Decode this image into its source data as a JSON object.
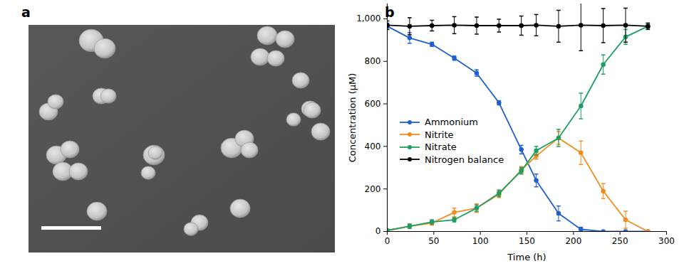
{
  "image_panel": {
    "label": "a"
  },
  "chart_data": {
    "type": "line",
    "label": "b",
    "x_label": "Time (h)",
    "y_label": "Concentration (μM)",
    "x": [
      0,
      24,
      48,
      72,
      96,
      120,
      144,
      160,
      184,
      208,
      232,
      256,
      280
    ],
    "xlim": [
      0,
      300
    ],
    "xticks": [
      0,
      50,
      100,
      150,
      200,
      250,
      300
    ],
    "ylim": [
      0,
      1070
    ],
    "yticks": [
      0,
      200,
      400,
      600,
      800,
      {
        "value": 1000,
        "label": "1,000"
      }
    ],
    "marker": "circle",
    "legend": "center left",
    "series": [
      {
        "name": "Ammonium",
        "color": "#1f5fd1",
        "values": [
          965,
          910,
          880,
          815,
          745,
          605,
          385,
          240,
          85,
          10,
          0,
          0,
          0
        ],
        "errors": [
          15,
          25,
          10,
          10,
          15,
          10,
          20,
          30,
          35,
          10,
          0,
          0,
          0
        ]
      },
      {
        "name": "Nitrite",
        "color": "#f28c1c",
        "values": [
          5,
          25,
          40,
          90,
          110,
          175,
          290,
          355,
          440,
          370,
          190,
          55,
          0
        ],
        "errors": [
          5,
          10,
          10,
          20,
          20,
          15,
          15,
          15,
          30,
          55,
          35,
          40,
          5
        ]
      },
      {
        "name": "Nitrate",
        "color": "#1e9e62",
        "values": [
          5,
          25,
          45,
          55,
          110,
          180,
          285,
          380,
          440,
          590,
          785,
          915,
          965
        ],
        "errors": [
          5,
          10,
          10,
          10,
          15,
          15,
          15,
          20,
          40,
          60,
          45,
          35,
          10
        ]
      },
      {
        "name": "Nitrogen balance",
        "color": "#000000",
        "values": [
          970,
          965,
          968,
          970,
          968,
          968,
          968,
          970,
          965,
          970,
          968,
          970,
          965
        ],
        "errors": [
          20,
          40,
          25,
          40,
          40,
          30,
          45,
          50,
          75,
          120,
          80,
          80,
          15
        ]
      }
    ]
  }
}
